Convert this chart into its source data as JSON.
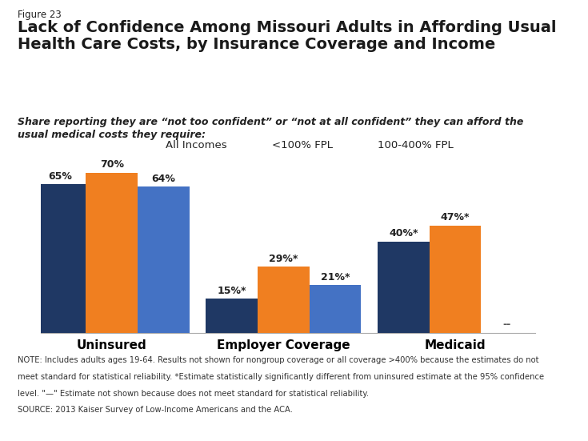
{
  "figure_label": "Figure 23",
  "title": "Lack of Confidence Among Missouri Adults in Affording Usual\nHealth Care Costs, by Insurance Coverage and Income",
  "subtitle": "Share reporting they are “not too confident” or “not at all confident” they can afford the\nusual medical costs they require:",
  "categories": [
    "Uninsured",
    "Employer Coverage",
    "Medicaid"
  ],
  "series": [
    {
      "name": "All Incomes",
      "color": "#1f3864",
      "values": [
        65,
        15,
        40
      ],
      "labels": [
        "65%",
        "15%*",
        "40%*"
      ]
    },
    {
      "name": "<100% FPL",
      "color": "#f07f20",
      "values": [
        70,
        29,
        47
      ],
      "labels": [
        "70%",
        "29%*",
        "47%*"
      ]
    },
    {
      "name": "100-400% FPL",
      "color": "#4472c4",
      "values": [
        64,
        21,
        null
      ],
      "labels": [
        "64%",
        "21%*",
        "--"
      ]
    }
  ],
  "note_line1": "NOTE: Includes adults ages 19-64. Results not shown for nongroup coverage or all coverage >400% because the estimates do not",
  "note_line2": "meet standard for statistical reliability. *Estimate statistically significantly different from uninsured estimate at the 95% confidence",
  "note_line3": "level. \"—\" Estimate not shown because does not meet standard for statistical reliability.",
  "note_line4": "SOURCE: 2013 Kaiser Survey of Low-Income Americans and the ACA.",
  "ylim": [
    0,
    80
  ],
  "bar_width": 0.22,
  "background_color": "#ffffff",
  "logo_color_top": "#1f3864",
  "logo_color_bottom": "#9b1b1b",
  "label_fontsize": 9,
  "axis_label_fontsize": 11
}
